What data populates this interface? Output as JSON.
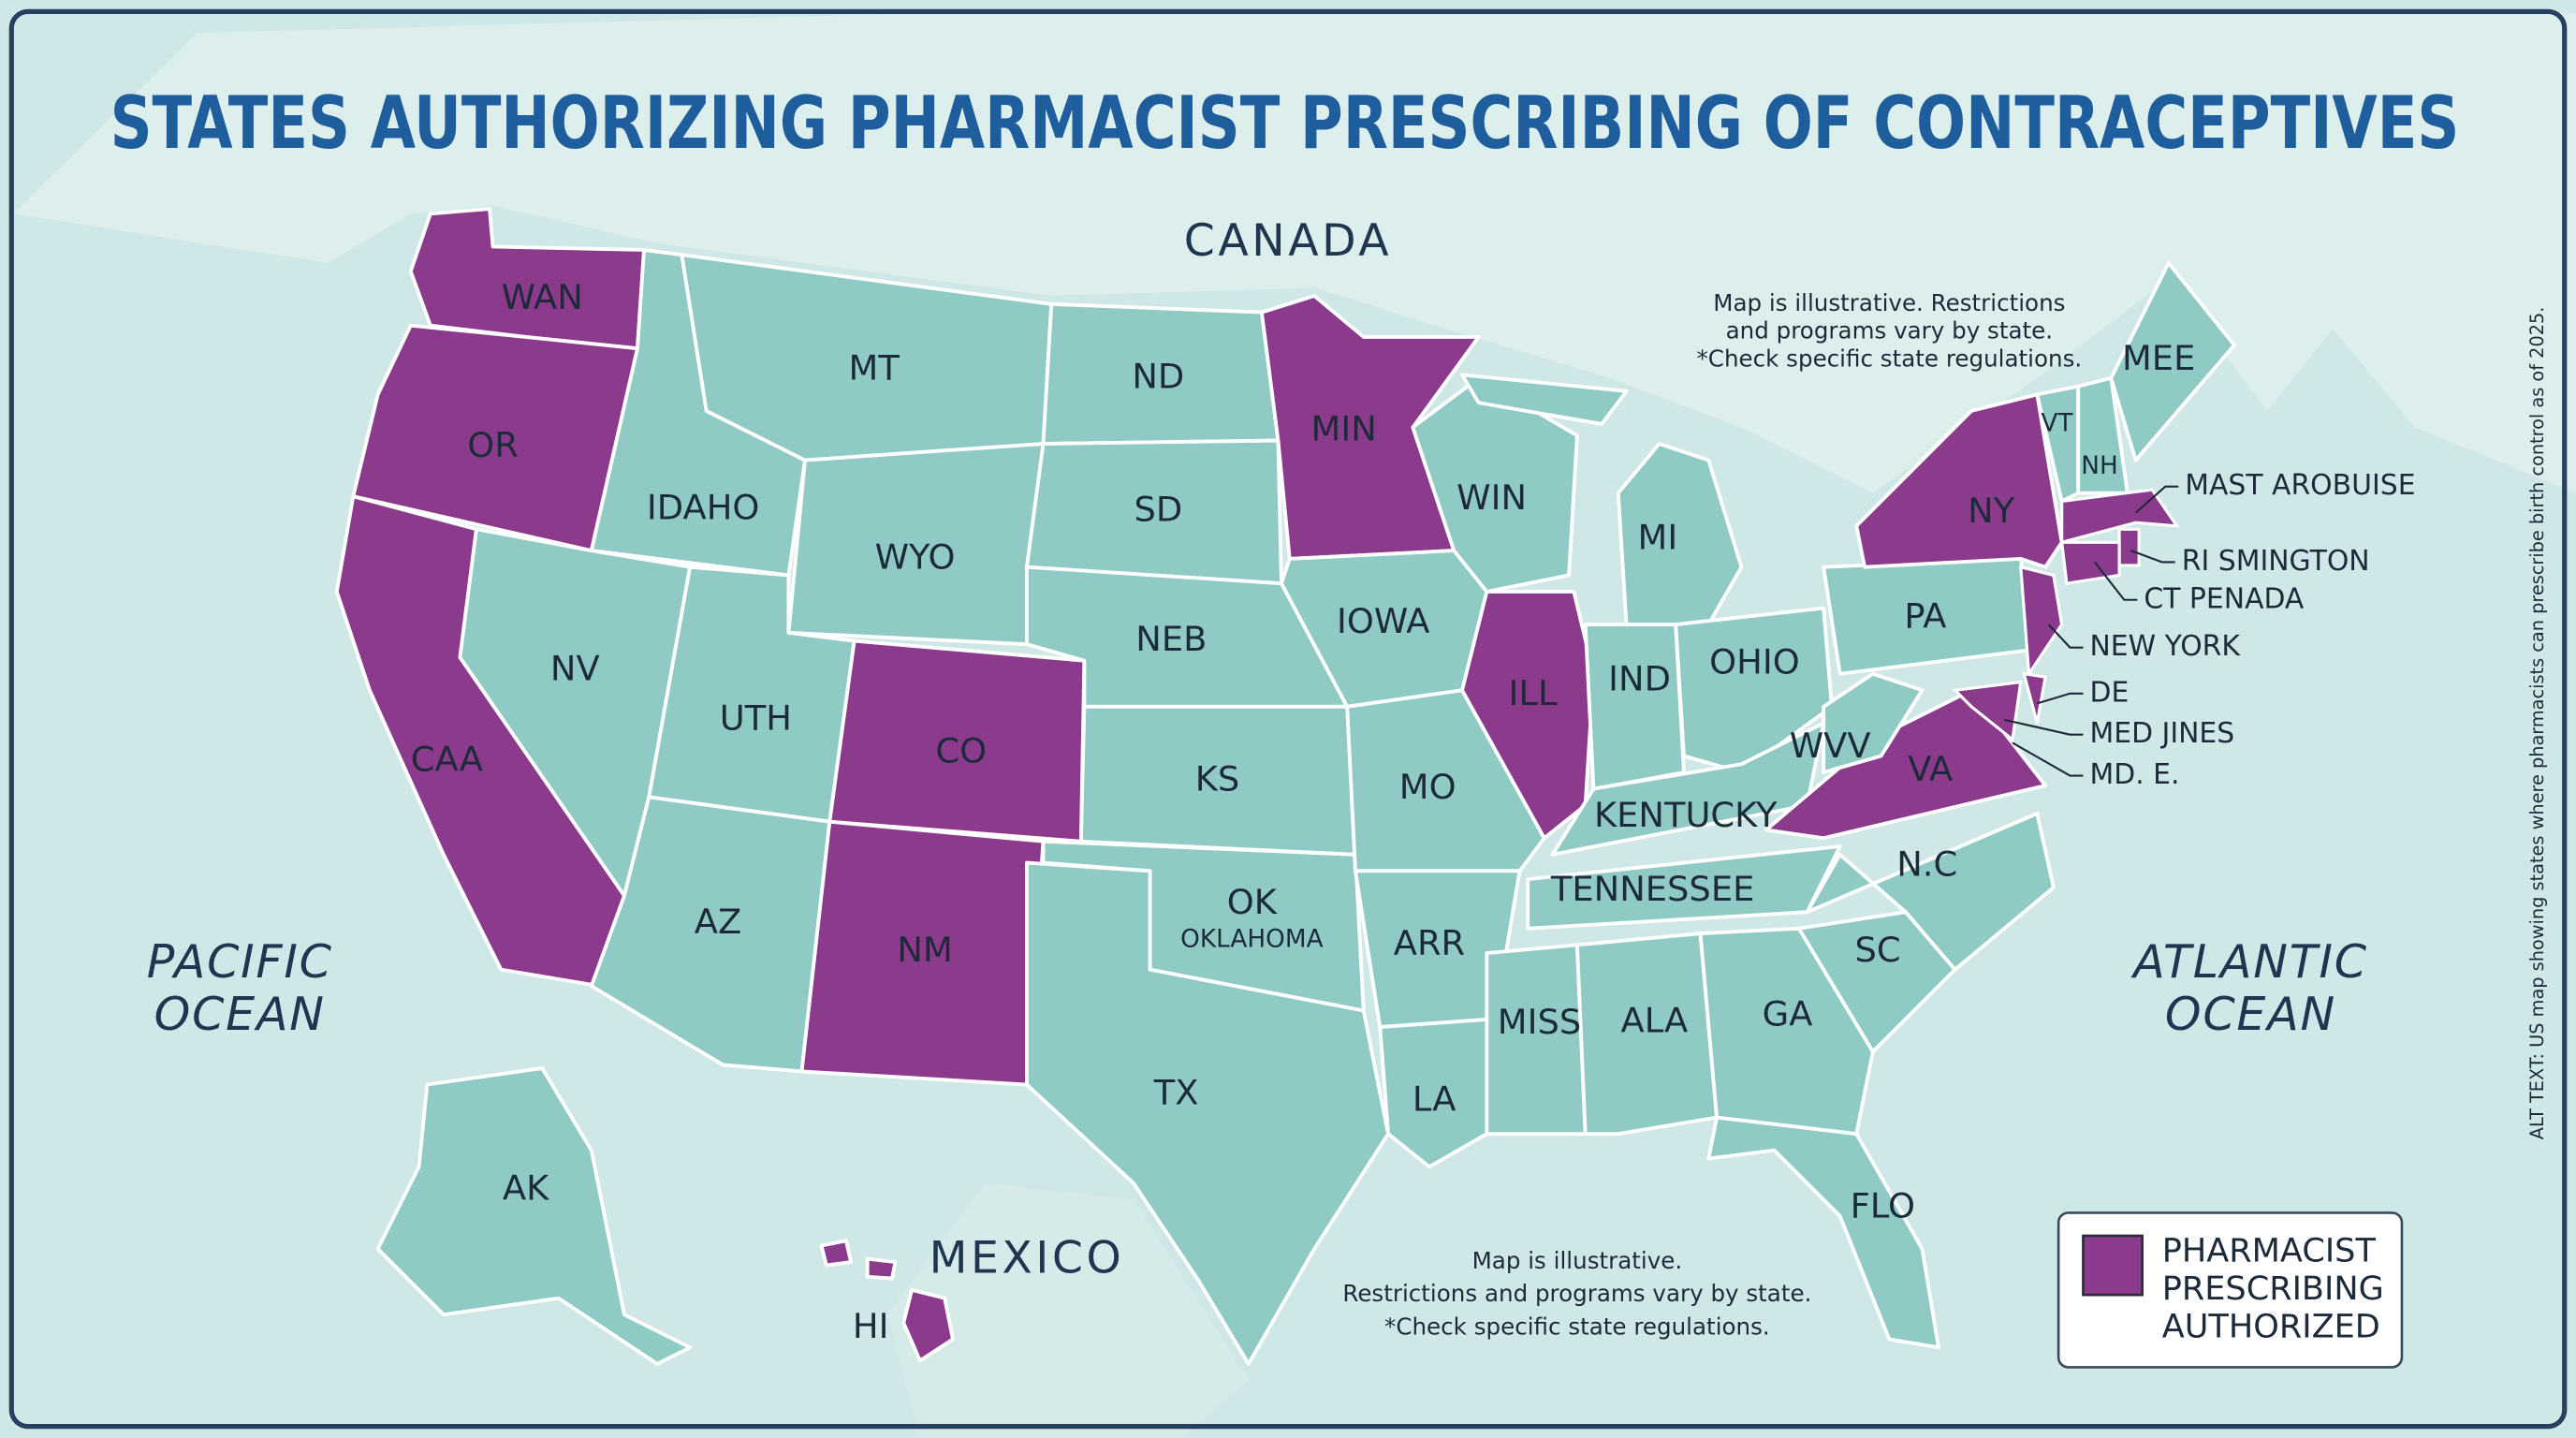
{
  "title": "STATES AUTHORIZING PHARMACIST PRESCRIBING OF CONTRACEPTIVES",
  "regions": {
    "canada": "CANADA",
    "mexico": "MEXICO",
    "pacific": [
      "PACIFIC",
      "OCEAN"
    ],
    "atlantic": [
      "ATLANTIC",
      "OCEAN"
    ]
  },
  "note_top": [
    "Map is illustrative. Restrictions",
    "and programs vary by state.",
    "*Check specific state regulations."
  ],
  "note_bottom": [
    "Map is illustrative.",
    "Restrictions and programs vary by state.",
    "*Check specific state regulations."
  ],
  "legend": {
    "label": [
      "PHARMACIST",
      "PRESCRIBING",
      "AUTHORIZED"
    ],
    "color": "#8c3a8c"
  },
  "land_color": "#8fcac4",
  "states": [
    {
      "label": "WAN",
      "authorized": true
    },
    {
      "label": "OR",
      "authorized": true
    },
    {
      "label": "CAA",
      "authorized": true
    },
    {
      "label": "IDAHO",
      "authorized": false
    },
    {
      "label": "NV",
      "authorized": false
    },
    {
      "label": "MT",
      "authorized": false
    },
    {
      "label": "WYO",
      "authorized": false
    },
    {
      "label": "UTH",
      "authorized": false
    },
    {
      "label": "AZ",
      "authorized": false
    },
    {
      "label": "CO",
      "authorized": true
    },
    {
      "label": "NM",
      "authorized": true
    },
    {
      "label": "ND",
      "authorized": false
    },
    {
      "label": "SD",
      "authorized": false
    },
    {
      "label": "NEB",
      "authorized": false
    },
    {
      "label": "KS",
      "authorized": false
    },
    {
      "label": "OK",
      "sublabel": "OKLAHOMA",
      "authorized": false
    },
    {
      "label": "TX",
      "authorized": false
    },
    {
      "label": "MIN",
      "authorized": true
    },
    {
      "label": "IOWA",
      "authorized": false
    },
    {
      "label": "MO",
      "authorized": false
    },
    {
      "label": "ARR",
      "authorized": false
    },
    {
      "label": "LA",
      "authorized": false
    },
    {
      "label": "WIN",
      "authorized": false
    },
    {
      "label": "ILL",
      "authorized": true
    },
    {
      "label": "MI",
      "authorized": false
    },
    {
      "label": "IND",
      "authorized": false
    },
    {
      "label": "OHIO",
      "authorized": false
    },
    {
      "label": "KENTUCKY",
      "authorized": false
    },
    {
      "label": "TENNESSEE",
      "authorized": false
    },
    {
      "label": "MISS",
      "authorized": false
    },
    {
      "label": "ALA",
      "authorized": false
    },
    {
      "label": "GA",
      "authorized": false
    },
    {
      "label": "FLO",
      "authorized": false
    },
    {
      "label": "SC",
      "authorized": false
    },
    {
      "label": "N.C",
      "authorized": false
    },
    {
      "label": "VA",
      "authorized": true
    },
    {
      "label": "WVV",
      "authorized": false
    },
    {
      "label": "PA",
      "authorized": false
    },
    {
      "label": "NY",
      "authorized": true
    },
    {
      "label": "VT",
      "authorized": false
    },
    {
      "label": "NH",
      "authorized": false
    },
    {
      "label": "MEE",
      "authorized": false
    },
    {
      "label": "AK",
      "authorized": false
    },
    {
      "label": "HI",
      "authorized": true
    }
  ],
  "callouts": [
    {
      "label": "MAST AROBUISE",
      "authorized": true
    },
    {
      "label": "RI SMINGTON",
      "authorized": true
    },
    {
      "label": "CT PENADA",
      "authorized": true
    },
    {
      "label": "NEW YORK",
      "authorized": true
    },
    {
      "label": "DE",
      "authorized": true
    },
    {
      "label": "MED JINES",
      "authorized": true
    },
    {
      "label": "MD. E.",
      "authorized": true
    }
  ],
  "alt_text": "ALT TEXT: US map showing states where pharmacists can prescribe birth control as of 2025."
}
